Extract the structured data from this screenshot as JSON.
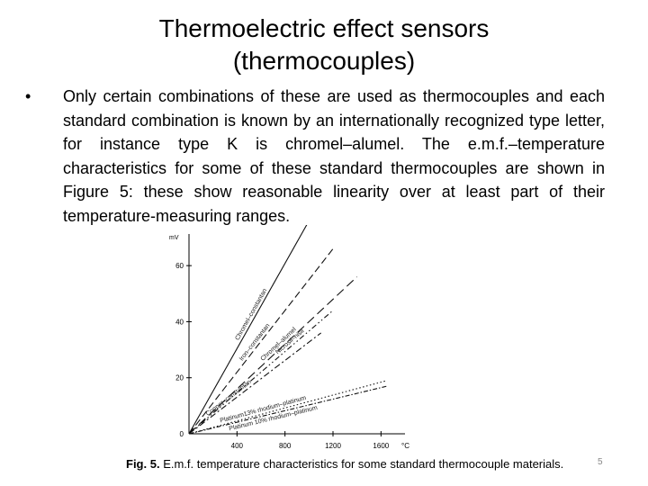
{
  "slide": {
    "title_line1": "Thermoelectric effect sensors",
    "title_line2": "(thermocouples)",
    "bullet": "Only certain combinations of these are used as thermocouples and each standard combination is known by an internationally recognized type letter, for instance type K is chromel–alumel. The e.m.f.–temperature characteristics for some of these standard thermocouples are shown in Figure 5: these show reasonable linearity over at least part of their temperature-measuring ranges.",
    "bullet_marker": "•",
    "caption_label": "Fig. 5.",
    "caption_text": "E.m.f. temperature characteristics for some standard thermocouple materials.",
    "slide_number": "5"
  },
  "chart_data": {
    "type": "line",
    "ylabel": "mV",
    "xlabel": "°C",
    "xlim": [
      0,
      1800
    ],
    "ylim": [
      0,
      70
    ],
    "x_ticks": [
      "400",
      "800",
      "1200",
      "1600"
    ],
    "x_tick_values": [
      400,
      800,
      1200,
      1600
    ],
    "y_ticks": [
      "20",
      "40",
      "60"
    ],
    "y_tick_values": [
      20,
      40,
      60
    ],
    "zero_label": "0",
    "series": [
      {
        "name": "Chromel–constantan",
        "dash": "solid",
        "x": [
          0,
          1000
        ],
        "y": [
          0,
          76
        ]
      },
      {
        "name": "Iron–constantan",
        "dash": "dashed",
        "x": [
          0,
          1200
        ],
        "y": [
          0,
          66
        ]
      },
      {
        "name": "Chromel–alumel",
        "dash": "longdash",
        "x": [
          0,
          1400
        ],
        "y": [
          0,
          56
        ]
      },
      {
        "name": "Copper–constantan",
        "dash": "dashdot",
        "x": [
          0,
          1100
        ],
        "y": [
          0,
          36
        ]
      },
      {
        "name": "Nicrosil–nisil",
        "dash": "dashdot2",
        "x": [
          0,
          1200
        ],
        "y": [
          0,
          44
        ]
      },
      {
        "name": "Platinum13% rhodium–platinum",
        "dash": "dotted",
        "x": [
          0,
          1650
        ],
        "y": [
          0,
          19
        ]
      },
      {
        "name": "Platinum 10% rhodium–platinum",
        "dash": "dotdash",
        "x": [
          0,
          1650
        ],
        "y": [
          0,
          17
        ]
      }
    ]
  }
}
